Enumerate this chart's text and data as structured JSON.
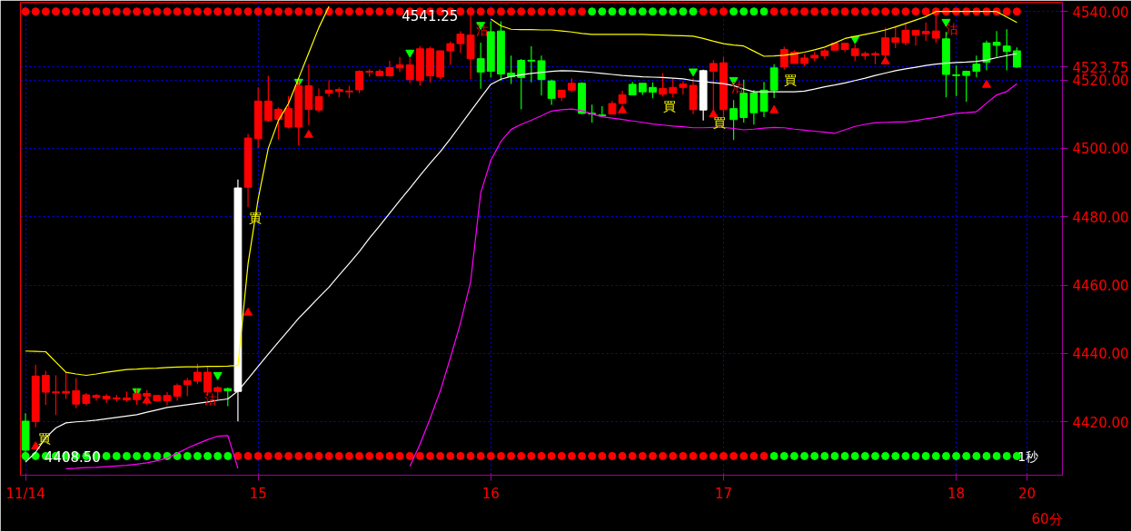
{
  "chart_data": {
    "type": "candlestick",
    "categories": [
      "11/14",
      null,
      null,
      null,
      null,
      null,
      null,
      null,
      null,
      null,
      null,
      null,
      null,
      null,
      null,
      null,
      null,
      null,
      null,
      null,
      null,
      null,
      null,
      "15",
      null,
      null,
      null,
      null,
      null,
      null,
      null,
      null,
      null,
      null,
      null,
      null,
      null,
      null,
      null,
      null,
      null,
      null,
      null,
      null,
      null,
      null,
      "16",
      null,
      null,
      null,
      null,
      null,
      null,
      null,
      null,
      null,
      null,
      null,
      null,
      null,
      null,
      null,
      null,
      null,
      null,
      null,
      null,
      null,
      null,
      "17",
      null,
      null,
      null,
      null,
      null,
      null,
      null,
      null,
      null,
      null,
      null,
      null,
      null,
      null,
      null,
      null,
      null,
      null,
      null,
      null,
      null,
      null,
      "18",
      null,
      null,
      null,
      null,
      null,
      null,
      "20",
      null,
      null,
      null
    ],
    "ohlc": [
      [
        4420.2,
        4422.5,
        4408.5,
        4411.7
      ],
      [
        4420.1,
        4436.7,
        4418.4,
        4433.4
      ],
      [
        4428.7,
        4434.9,
        4425.0,
        4433.6
      ],
      [
        4428.5,
        4433.6,
        4422.0,
        4428.75
      ],
      [
        4428.4,
        4434.5,
        4426.7,
        4428.9
      ],
      [
        4425.2,
        4432.8,
        4424.0,
        4429.1
      ],
      [
        4425.4,
        4428.4,
        4424.8,
        4427.9
      ],
      [
        4427.1,
        4428.1,
        4426.2,
        4427.7
      ],
      [
        4426.7,
        4428.1,
        4425.5,
        4427.5
      ],
      [
        4426.75,
        4427.9,
        4425.9,
        4427.0
      ],
      [
        4426.4,
        4428.9,
        4425.9,
        4427.0
      ],
      [
        4426.5,
        4429.6,
        4425.0,
        4428.3
      ],
      [
        4427.5,
        4429.3,
        4425.0,
        4428.3
      ],
      [
        4426.2,
        4427.75,
        4425.9,
        4427.7
      ],
      [
        4426.2,
        4428.7,
        4425.0,
        4427.7
      ],
      [
        4427.5,
        4431.2,
        4426.2,
        4430.6
      ],
      [
        4430.9,
        4432.8,
        4427.5,
        4432.0
      ],
      [
        4431.9,
        4437.0,
        4431.0,
        4434.5
      ],
      [
        4428.7,
        4436.1,
        4427.9,
        4434.5
      ],
      [
        4428.9,
        4430.4,
        4426.4,
        4430.0
      ],
      [
        4429.7,
        4430.0,
        4424.6,
        4429.1
      ],
      [
        4428.9,
        4490.9,
        4420.1,
        4488.4
      ],
      [
        4488.6,
        4504.2,
        4482.8,
        4503.0
      ],
      [
        4502.8,
        4517.8,
        4500.1,
        4513.8
      ],
      [
        4508.1,
        4521.2,
        4507.7,
        4513.8
      ],
      [
        4508.4,
        4512.0,
        4502.5,
        4511.4
      ],
      [
        4506.2,
        4515.3,
        4505.8,
        4511.6
      ],
      [
        4506.2,
        4519.8,
        4500.9,
        4518.3
      ],
      [
        4511.4,
        4524.6,
        4506.7,
        4518.3
      ],
      [
        4511.2,
        4517.5,
        4510.6,
        4515.1
      ],
      [
        4516.1,
        4519.9,
        4515.1,
        4517.0
      ],
      [
        4516.6,
        4517.8,
        4514.9,
        4517.2
      ],
      [
        4516.5,
        4518.3,
        4514.7,
        4516.75
      ],
      [
        4517.1,
        4522.8,
        4516.1,
        4522.5
      ],
      [
        4522.25,
        4523.1,
        4520.9,
        4522.5
      ],
      [
        4521.2,
        4523.1,
        4521.2,
        4522.5
      ],
      [
        4521.2,
        4525.6,
        4520.9,
        4523.6
      ],
      [
        4523.5,
        4526.7,
        4522.3,
        4524.4
      ],
      [
        4520.1,
        4526.6,
        4519.1,
        4524.4
      ],
      [
        4519.9,
        4529.9,
        4518.3,
        4529.1
      ],
      [
        4521.2,
        4529.7,
        4519.3,
        4529.1
      ],
      [
        4520.9,
        4528.5,
        4520.3,
        4528.5
      ],
      [
        4528.5,
        4531.2,
        4524.4,
        4530.6
      ],
      [
        4530.6,
        4534.2,
        4527.9,
        4533.4
      ],
      [
        4526.2,
        4541.25,
        4520.2,
        4533.1
      ],
      [
        4526.2,
        4530.9,
        4517.4,
        4522.3
      ],
      [
        4534.1,
        4537.1,
        4520.7,
        4522.5
      ],
      [
        4534.3,
        4537.1,
        4519.8,
        4521.7
      ],
      [
        4522.0,
        4527.1,
        4518.8,
        4520.9
      ],
      [
        4525.7,
        4526.1,
        4511.4,
        4520.7
      ],
      [
        4525.75,
        4529.8,
        4519.3,
        4525.5
      ],
      [
        4525.6,
        4527.1,
        4515.4,
        4520.1
      ],
      [
        4519.7,
        4520.1,
        4512.7,
        4514.6
      ],
      [
        4514.9,
        4517.0,
        4513.9,
        4517.0
      ],
      [
        4517.0,
        4520.5,
        4516.4,
        4519.0
      ],
      [
        4519.0,
        4519.3,
        4510.0,
        4510.2
      ],
      [
        4510.25,
        4512.8,
        4507.5,
        4510.0
      ],
      [
        4509.75,
        4512.3,
        4509.25,
        4509.5
      ],
      [
        4510.0,
        4513.8,
        4510.0,
        4513.1
      ],
      [
        4513.1,
        4516.8,
        4512.8,
        4515.6
      ],
      [
        4518.7,
        4519.4,
        4515.6,
        4515.6
      ],
      [
        4519.0,
        4519.0,
        4515.6,
        4516.5
      ],
      [
        4517.8,
        4519.3,
        4514.6,
        4516.4
      ],
      [
        4515.8,
        4522.0,
        4515.1,
        4517.5
      ],
      [
        4516.1,
        4520.5,
        4514.9,
        4517.8
      ],
      [
        4517.8,
        4519.7,
        4515.7,
        4518.8
      ],
      [
        4511.3,
        4520.5,
        4510.0,
        4518.4
      ],
      [
        4511.2,
        4523.0,
        4508.1,
        4522.7
      ],
      [
        4522.5,
        4525.8,
        4509.8,
        4524.8
      ],
      [
        4511.3,
        4526.7,
        4509.0,
        4525.0
      ],
      [
        4511.6,
        4514.1,
        4502.4,
        4508.4
      ],
      [
        4516.1,
        4520.1,
        4507.5,
        4509.0
      ],
      [
        4516.2,
        4517.0,
        4506.9,
        4510.4
      ],
      [
        4517.0,
        4519.4,
        4509.1,
        4510.8
      ],
      [
        4523.5,
        4524.6,
        4514.7,
        4517.0
      ],
      [
        4523.8,
        4529.7,
        4523.0,
        4528.9
      ],
      [
        4524.8,
        4528.6,
        4524.8,
        4528.1
      ],
      [
        4524.8,
        4527.5,
        4524.0,
        4526.4
      ],
      [
        4526.4,
        4528.1,
        4525.5,
        4527.2
      ],
      [
        4527.1,
        4529.1,
        4526.2,
        4528.5
      ],
      [
        4528.7,
        4530.9,
        4528.5,
        4530.7
      ],
      [
        4528.9,
        4530.9,
        4528.1,
        4530.7
      ],
      [
        4527.1,
        4530.4,
        4525.5,
        4529.1
      ],
      [
        4527.1,
        4528.3,
        4525.9,
        4527.7
      ],
      [
        4527.3,
        4528.3,
        4524.6,
        4527.7
      ],
      [
        4527.3,
        4535.3,
        4526.3,
        4532.3
      ],
      [
        4531.0,
        4535.7,
        4529.3,
        4532.3
      ],
      [
        4530.9,
        4536.3,
        4530.1,
        4534.5
      ],
      [
        4533.1,
        4534.7,
        4530.0,
        4534.5
      ],
      [
        4533.5,
        4536.8,
        4531.4,
        4534.2
      ],
      [
        4532.2,
        4539.3,
        4530.8,
        4534.3
      ],
      [
        4532.0,
        4534.1,
        4514.9,
        4521.6
      ],
      [
        4521.5,
        4524.2,
        4515.3,
        4521.25
      ],
      [
        4522.5,
        4522.7,
        4513.6,
        4521.3
      ],
      [
        4524.6,
        4527.1,
        4520.8,
        4522.5
      ],
      [
        4530.8,
        4531.5,
        4522.8,
        4525.2
      ],
      [
        4531.0,
        4534.3,
        4526.7,
        4530.1
      ],
      [
        4529.9,
        4534.8,
        4522.8,
        4528.3
      ],
      [
        4528.5,
        4529.5,
        4523.5,
        4523.75
      ],
      null,
      null,
      null,
      null
    ],
    "colors": [
      "#00ff00",
      "#ff0000",
      "#ff0000",
      "#ff0000",
      "#ff0000",
      "#ff0000",
      "#ff0000",
      "#ff0000",
      "#ff0000",
      "#ff0000",
      "#ff0000",
      "#ff0000",
      "#ff0000",
      "#ff0000",
      "#ff0000",
      "#ff0000",
      "#ff0000",
      "#ff0000",
      "#ff0000",
      "#ff0000",
      "#00ff00",
      "#ffffff",
      "#ff0000",
      "#ff0000",
      "#ff0000",
      "#ff0000",
      "#ff0000",
      "#ff0000",
      "#ff0000",
      "#ff0000",
      "#ff0000",
      "#ff0000",
      "#ff0000",
      "#ff0000",
      "#ff0000",
      "#ff0000",
      "#ff0000",
      "#ff0000",
      "#ff0000",
      "#ff0000",
      "#ff0000",
      "#ff0000",
      "#ff0000",
      "#ff0000",
      "#ff0000",
      "#00ff00",
      "#00ff00",
      "#00ff00",
      "#00ff00",
      "#00ff00",
      "#00ff00",
      "#00ff00",
      "#00ff00",
      "#ff0000",
      "#ff0000",
      "#00ff00",
      "#00ff00",
      "#00ff00",
      "#ff0000",
      "#ff0000",
      "#00ff00",
      "#00ff00",
      "#00ff00",
      "#ff0000",
      "#ff0000",
      "#ff0000",
      "#ff0000",
      "#ffffff",
      "#ff0000",
      "#ff0000",
      "#00ff00",
      "#00ff00",
      "#00ff00",
      "#00ff00",
      "#00ff00",
      "#ff0000",
      "#ff0000",
      "#ff0000",
      "#ff0000",
      "#ff0000",
      "#ff0000",
      "#ff0000",
      "#ff0000",
      "#ff0000",
      "#ff0000",
      "#ff0000",
      "#ff0000",
      "#ff0000",
      "#ff0000",
      "#ff0000",
      "#ff0000",
      "#00ff00",
      "#00ff00",
      "#00ff00",
      "#00ff00",
      "#00ff00",
      "#00ff00",
      "#00ff00",
      "#00ff00",
      "#00ff00",
      null,
      null,
      null
    ],
    "series": [
      {
        "type": "line",
        "color": "#ffff00",
        "values": [
          4440.7,
          4440.6,
          4440.5,
          4437.5,
          4434.5,
          4434.0,
          4433.6,
          4434.0,
          4434.5,
          4434.9,
          4435.3,
          4435.4,
          4435.6,
          4435.7,
          4435.9,
          4436.0,
          4436.1,
          4436.1,
          4436.2,
          4436.2,
          4436.3,
          4436.5,
          4466.2,
          4485.2,
          4500.0,
          4508.1,
          4513.1,
          4520.5,
          4527.9,
          4535.3,
          4541.5,
          null,
          null,
          null,
          null,
          null,
          null,
          null,
          null,
          null,
          null,
          null,
          null,
          null,
          null,
          null,
          4537.8,
          4535.8,
          4534.8,
          4534.7,
          4534.7,
          4534.6,
          4534.6,
          4534.3,
          4534.0,
          4533.6,
          4533.3,
          4533.3,
          4533.3,
          4533.3,
          4533.3,
          4533.3,
          4533.2,
          4533.1,
          4533.0,
          4532.9,
          4532.8,
          4532.1,
          4531.3,
          4530.6,
          4530.2,
          4529.9,
          4528.4,
          4526.9,
          4527.0,
          4527.2,
          4527.6,
          4528.1,
          4528.8,
          4529.6,
          4530.8,
          4532.1,
          4532.7,
          4533.3,
          4533.9,
          4534.6,
          4535.5,
          4536.5,
          4537.5,
          4538.5,
          4540.0,
          4540.0,
          4540.0,
          4540.0,
          4540.0,
          4540.0,
          4540.0,
          4538.4,
          4536.8,
          null,
          null,
          null,
          null
        ]
      },
      {
        "type": "line",
        "color": "#ffffff",
        "values": [
          4408.2,
          4411.1,
          4415.4,
          4418.2,
          4419.7,
          4420.0,
          4420.2,
          4420.5,
          4420.9,
          4421.3,
          4421.7,
          4422.1,
          4422.8,
          4423.5,
          4424.2,
          4424.6,
          4425.0,
          4425.4,
          4425.8,
          4426.3,
          4426.7,
          4429.0,
          4432.6,
          4436.2,
          4439.8,
          4443.3,
          4446.8,
          4450.3,
          4453.3,
          4456.4,
          4459.4,
          4462.9,
          4466.3,
          4469.8,
          4473.7,
          4477.3,
          4481.0,
          4484.7,
          4488.3,
          4492.0,
          4495.6,
          4499.0,
          4502.8,
          4506.8,
          4510.8,
          4514.8,
          4518.7,
          4520.2,
          4521.0,
          4521.5,
          4521.9,
          4522.2,
          4522.5,
          4522.7,
          4522.6,
          4522.4,
          4522.2,
          4521.9,
          4521.6,
          4521.3,
          4521.1,
          4520.9,
          4520.8,
          4520.7,
          4520.5,
          4520.3,
          4519.8,
          4519.5,
          4519.2,
          4518.9,
          4518.3,
          4517.3,
          4516.5,
          4516.5,
          4516.5,
          4516.5,
          4516.5,
          4516.7,
          4517.3,
          4518.0,
          4518.5,
          4519.1,
          4519.8,
          4520.5,
          4521.3,
          4522.0,
          4522.7,
          4523.2,
          4523.7,
          4524.2,
          4524.6,
          4524.9,
          4525.1,
          4525.2,
          4525.4,
          4525.8,
          4526.5,
          4527.1,
          4527.7,
          null,
          null,
          null,
          null
        ]
      },
      {
        "type": "line",
        "color": "#ff00ff",
        "values": [
          null,
          null,
          null,
          null,
          4406.3,
          4406.4,
          4406.6,
          4406.7,
          4406.9,
          4407.1,
          4407.3,
          4407.6,
          4408.0,
          4408.6,
          4409.4,
          4410.8,
          4412.3,
          4413.6,
          4414.8,
          4415.8,
          4416.0,
          4406.4,
          null,
          null,
          null,
          null,
          null,
          null,
          null,
          null,
          null,
          null,
          null,
          null,
          null,
          null,
          null,
          null,
          4407.0,
          4413.5,
          4421.0,
          4429.0,
          4438.7,
          4448.9,
          4461.0,
          4487.0,
          4496.5,
          4502.0,
          4505.5,
          4507.0,
          4508.2,
          4509.5,
          4510.9,
          4511.3,
          4511.5,
          4511.0,
          4510.0,
          4509.2,
          4508.8,
          4508.4,
          4508.0,
          4507.6,
          4507.1,
          4506.8,
          4506.5,
          4506.3,
          4506.0,
          4506.0,
          4506.1,
          4506.1,
          4505.8,
          4505.4,
          4505.6,
          4505.9,
          4506.1,
          4506.0,
          4505.6,
          4505.3,
          4505.0,
          4504.7,
          4504.4,
          4505.4,
          4506.4,
          4507.0,
          4507.5,
          4507.6,
          4507.7,
          4507.7,
          4508.1,
          4508.6,
          4509.0,
          4509.6,
          4510.2,
          4510.4,
          4510.7,
          4513.2,
          4515.6,
          4516.6,
          4518.9,
          null,
          null,
          null,
          null
        ]
      },
      {
        "type": "scatter",
        "marker": "circle",
        "values": [
          4540,
          4540,
          4540,
          4540,
          4540,
          4540,
          4540,
          4540,
          4540,
          4540,
          4540,
          4540,
          4540,
          4540,
          4540,
          4540,
          4540,
          4540,
          4540,
          4540,
          4540,
          4540,
          4540,
          4540,
          4540,
          4540,
          4540,
          4540,
          4540,
          4540,
          4540,
          4540,
          4540,
          4540,
          4540,
          4540,
          4540,
          4540,
          4540,
          4540,
          4540,
          4540,
          4540,
          4540,
          4540,
          4540,
          4540,
          4540,
          4540,
          4540,
          4540,
          4540,
          4540,
          4540,
          4540,
          4540,
          4540,
          4540,
          4540,
          4540,
          4540,
          4540,
          4540,
          4540,
          4540,
          4540,
          4540,
          4540,
          4540,
          4540,
          4540,
          4540,
          4540,
          4540,
          4540,
          4540,
          4540,
          4540,
          4540,
          4540,
          4540,
          4540,
          4540,
          4540,
          4540,
          4540,
          4540,
          4540,
          4540,
          4540,
          4540,
          4540,
          4540,
          4540,
          4540,
          4540,
          4540,
          4540,
          4540,
          null,
          null,
          null,
          null
        ],
        "colors": [
          "#ff0000",
          "#ff0000",
          "#ff0000",
          "#ff0000",
          "#ff0000",
          "#ff0000",
          "#ff0000",
          "#ff0000",
          "#ff0000",
          "#ff0000",
          "#ff0000",
          "#ff0000",
          "#ff0000",
          "#ff0000",
          "#ff0000",
          "#ff0000",
          "#ff0000",
          "#ff0000",
          "#ff0000",
          "#ff0000",
          "#ff0000",
          "#ff0000",
          "#ff0000",
          "#ff0000",
          "#ff0000",
          "#ff0000",
          "#ff0000",
          "#ff0000",
          "#ff0000",
          "#ff0000",
          "#ff0000",
          "#ff0000",
          "#ff0000",
          "#ff0000",
          "#ff0000",
          "#ff0000",
          "#ff0000",
          "#ff0000",
          "#ff0000",
          "#ff0000",
          "#ff0000",
          "#ff0000",
          "#ff0000",
          "#ff0000",
          "#ff0000",
          "#ff0000",
          "#ff0000",
          "#ff0000",
          "#ff0000",
          "#ff0000",
          "#ff0000",
          "#ff0000",
          "#ff0000",
          "#ff0000",
          "#ff0000",
          "#ff0000",
          "#00ff00",
          "#00ff00",
          "#00ff00",
          "#00ff00",
          "#00ff00",
          "#00ff00",
          "#00ff00",
          "#00ff00",
          "#00ff00",
          "#00ff00",
          "#00ff00",
          "#ff0000",
          "#ff0000",
          "#ff0000",
          "#00ff00",
          "#00ff00",
          "#00ff00",
          "#00ff00",
          "#ff0000",
          "#ff0000",
          "#ff0000",
          "#ff0000",
          "#ff0000",
          "#ff0000",
          "#ff0000",
          "#ff0000",
          "#ff0000",
          "#ff0000",
          "#ff0000",
          "#ff0000",
          "#ff0000",
          "#ff0000",
          "#ff0000",
          "#ff0000",
          "#ff0000",
          "#ff0000",
          "#ff0000",
          "#ff0000",
          "#ff0000",
          "#ff0000",
          "#ff0000",
          "#ff0000",
          "#ff0000",
          "#ff0000",
          "#ff0000",
          "#ff0000",
          "#ff0000"
        ]
      },
      {
        "type": "scatter",
        "marker": "circle",
        "values": [
          4410,
          4410,
          4410,
          4410,
          4410,
          4410,
          4410,
          4410,
          4410,
          4410,
          4410,
          4410,
          4410,
          4410,
          4410,
          4410,
          4410,
          4410,
          4410,
          4410,
          4410,
          4410,
          4410,
          4410,
          4410,
          4410,
          4410,
          4410,
          4410,
          4410,
          4410,
          4410,
          4410,
          4410,
          4410,
          4410,
          4410,
          4410,
          4410,
          4410,
          4410,
          4410,
          4410,
          4410,
          4410,
          4410,
          4410,
          4410,
          4410,
          4410,
          4410,
          4410,
          4410,
          4410,
          4410,
          4410,
          4410,
          4410,
          4410,
          4410,
          4410,
          4410,
          4410,
          4410,
          4410,
          4410,
          4410,
          4410,
          4410,
          4410,
          4410,
          4410,
          4410,
          4410,
          4410,
          4410,
          4410,
          4410,
          4410,
          4410,
          4410,
          4410,
          4410,
          4410,
          4410,
          4410,
          4410,
          4410,
          4410,
          4410,
          4410,
          4410,
          4410,
          4410,
          4410,
          4410,
          4410,
          4410,
          4410,
          null,
          null,
          null,
          null
        ],
        "colors": [
          "#00ff00",
          "#00ff00",
          "#00ff00",
          "#00ff00",
          "#00ff00",
          "#00ff00",
          "#00ff00",
          "#00ff00",
          "#00ff00",
          "#00ff00",
          "#00ff00",
          "#00ff00",
          "#00ff00",
          "#00ff00",
          "#00ff00",
          "#00ff00",
          "#00ff00",
          "#00ff00",
          "#00ff00",
          "#00ff00",
          "#00ff00",
          "#ff0000",
          "#ff0000",
          "#ff0000",
          "#ff0000",
          "#ff0000",
          "#ff0000",
          "#ff0000",
          "#ff0000",
          "#ff0000",
          "#ff0000",
          "#ff0000",
          "#ff0000",
          "#ff0000",
          "#ff0000",
          "#ff0000",
          "#ff0000",
          "#ff0000",
          "#ff0000",
          "#ff0000",
          "#ff0000",
          "#ff0000",
          "#ff0000",
          "#ff0000",
          "#ff0000",
          "#ff0000",
          "#ff0000",
          "#ff0000",
          "#ff0000",
          "#ff0000",
          "#ff0000",
          "#ff0000",
          "#ff0000",
          "#ff0000",
          "#ff0000",
          "#ff0000",
          "#ff0000",
          "#ff0000",
          "#ff0000",
          "#ff0000",
          "#ff0000",
          "#ff0000",
          "#ff0000",
          "#ff0000",
          "#ff0000",
          "#ff0000",
          "#ff0000",
          "#ff0000",
          "#ff0000",
          "#ff0000",
          "#ff0000",
          "#ff0000",
          "#ff0000",
          "#ff0000",
          "#00ff00",
          "#00ff00",
          "#00ff00",
          "#00ff00",
          "#00ff00",
          "#00ff00",
          "#00ff00",
          "#00ff00",
          "#00ff00",
          "#00ff00",
          "#00ff00",
          "#00ff00",
          "#00ff00",
          "#00ff00",
          "#00ff00",
          "#00ff00",
          "#00ff00",
          "#00ff00",
          "#00ff00",
          "#00ff00",
          "#00ff00",
          "#00ff00",
          "#00ff00",
          "#00ff00",
          "#00ff00",
          "#00ff00",
          "#00ff00",
          "#00ff00",
          "#00ff00"
        ]
      },
      {
        "type": "scatter",
        "marker": "triangle",
        "color": "#ff0000",
        "values": [
          null,
          4412.8,
          null,
          null,
          null,
          null,
          null,
          null,
          null,
          null,
          null,
          null,
          4426.2,
          null,
          null,
          null,
          null,
          null,
          null,
          null,
          null,
          null,
          4451.9,
          null,
          null,
          null,
          null,
          null,
          4503.9,
          null,
          null,
          null,
          null,
          null,
          null,
          null,
          null,
          null,
          null,
          null,
          null,
          null,
          null,
          null,
          null,
          null,
          null,
          null,
          null,
          null,
          null,
          null,
          null,
          null,
          null,
          null,
          null,
          null,
          null,
          4511.1,
          null,
          null,
          null,
          null,
          null,
          null,
          null,
          null,
          4509.9,
          null,
          null,
          null,
          null,
          null,
          4511.1,
          null,
          null,
          null,
          null,
          null,
          null,
          null,
          null,
          null,
          null,
          4525.4,
          null,
          null,
          null,
          null,
          null,
          null,
          null,
          null,
          null,
          4518.5,
          null,
          null,
          null,
          null,
          null,
          null,
          null
        ]
      },
      {
        "type": "scatter",
        "marker": "triangle",
        "color": "#00ff00",
        "values": [
          null,
          null,
          null,
          null,
          null,
          null,
          null,
          null,
          null,
          null,
          null,
          4429.0,
          null,
          null,
          null,
          null,
          null,
          null,
          null,
          4433.7,
          null,
          null,
          null,
          null,
          null,
          null,
          null,
          4519.5,
          null,
          null,
          null,
          null,
          null,
          null,
          null,
          null,
          null,
          null,
          4528.0,
          null,
          null,
          null,
          null,
          null,
          null,
          4536.1,
          null,
          null,
          null,
          null,
          null,
          null,
          null,
          null,
          null,
          null,
          null,
          null,
          null,
          null,
          null,
          null,
          null,
          null,
          null,
          null,
          4522.5,
          null,
          null,
          null,
          4520.0,
          null,
          null,
          null,
          null,
          null,
          null,
          null,
          null,
          null,
          null,
          null,
          4532.0,
          null,
          null,
          null,
          null,
          null,
          null,
          null,
          null,
          4537.0,
          null,
          null,
          null,
          null,
          null,
          null,
          null,
          null,
          null,
          null,
          null
        ]
      }
    ],
    "ylim": [
      4404.4,
      4542.7
    ],
    "yticks": [
      {
        "value": 4420,
        "label": "4420.00"
      },
      {
        "value": 4440,
        "label": "4440.00"
      },
      {
        "value": 4460,
        "label": "4460.00"
      },
      {
        "value": 4480,
        "label": "4480.00"
      },
      {
        "value": 4500,
        "label": "4500.00"
      },
      {
        "value": 4520,
        "label": "4520.00"
      },
      {
        "value": 4523.75,
        "label": "4523.75"
      },
      {
        "value": 4540,
        "label": "4540.00"
      }
    ],
    "grid": true,
    "annotations": [
      "4541.25",
      "4408.50",
      "買",
      "買",
      "買",
      "買",
      "買",
      "沽",
      "沽",
      "沽",
      "沽",
      "1秒",
      "60分"
    ]
  }
}
